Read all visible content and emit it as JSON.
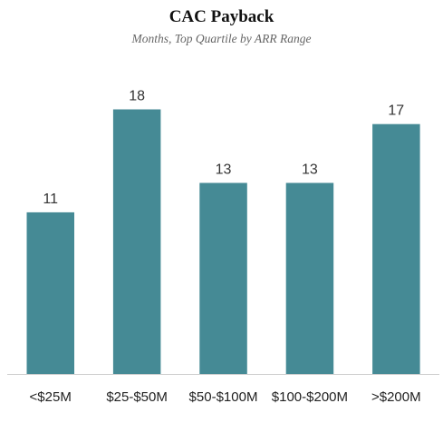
{
  "title": "CAC Payback",
  "subtitle": "Months, Top Quartile by ARR Range",
  "colors": {
    "bar": "#458a95",
    "axis": "#cfcfcf"
  },
  "chart_data": {
    "type": "bar",
    "title": "CAC Payback",
    "subtitle": "Months, Top Quartile by ARR Range",
    "categories": [
      "<$25M",
      "$25-$50M",
      "$50-$100M",
      "$100-$200M",
      ">$200M"
    ],
    "values": [
      11,
      18,
      13,
      13,
      17
    ],
    "data_labels": [
      "11",
      "18",
      "13",
      "13",
      "17"
    ],
    "xlabel": "",
    "ylabel": "",
    "ylim": [
      0,
      20.5
    ],
    "grid": false,
    "legend": "none"
  }
}
